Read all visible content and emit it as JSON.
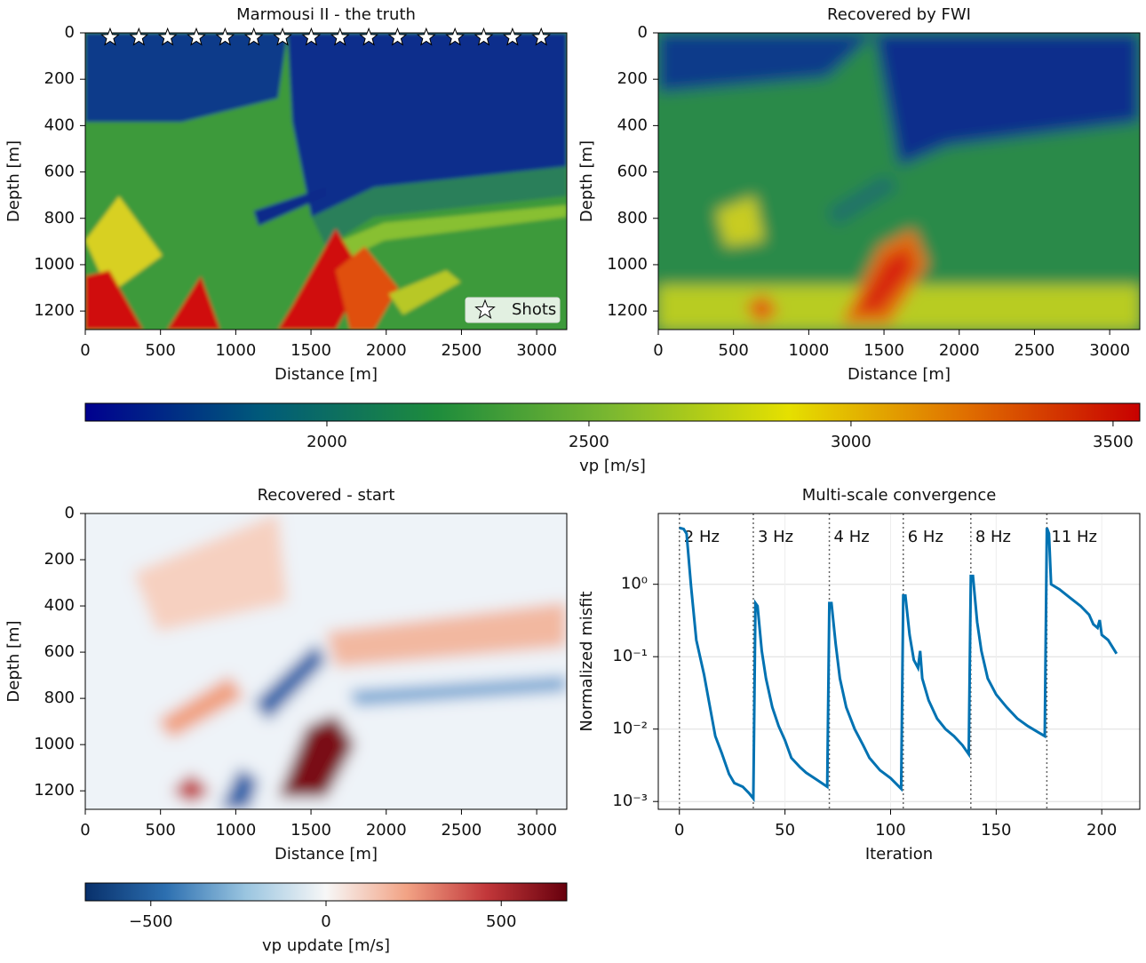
{
  "chart_data": [
    {
      "type": "heatmap",
      "title": "Marmousi II - the truth",
      "xlabel": "Distance [m]",
      "ylabel": "Depth [m]",
      "xlim": [
        0,
        3200
      ],
      "ylim": [
        1280,
        0
      ],
      "xticks": [
        0,
        500,
        1000,
        1500,
        2000,
        2500,
        3000
      ],
      "yticks": [
        0,
        200,
        400,
        600,
        800,
        1000,
        1200
      ],
      "shots": {
        "name": "Shots",
        "x": [
          165,
          356,
          547,
          738,
          929,
          1120,
          1311,
          1502,
          1693,
          1884,
          2075,
          2266,
          2457,
          2648,
          2839,
          3030
        ],
        "y": [
          20,
          20,
          20,
          20,
          20,
          20,
          20,
          20,
          20,
          20,
          20,
          20,
          20,
          20,
          20,
          20
        ]
      }
    },
    {
      "type": "heatmap",
      "title": "Recovered by FWI",
      "xlabel": "Distance [m]",
      "ylabel": "Depth [m]",
      "xlim": [
        0,
        3200
      ],
      "ylim": [
        1280,
        0
      ],
      "xticks": [
        0,
        500,
        1000,
        1500,
        2000,
        2500,
        3000
      ],
      "yticks": [
        0,
        200,
        400,
        600,
        800,
        1000,
        1200
      ]
    },
    {
      "type": "colorbar",
      "label": "vp [m/s]",
      "lim": [
        1539,
        3551
      ],
      "ticks": [
        2000,
        2500,
        3000,
        3500
      ],
      "colors": [
        "#00008f",
        "#005a7a",
        "#1e8c3c",
        "#7cb830",
        "#e5e000",
        "#e07000",
        "#c80000"
      ]
    },
    {
      "type": "heatmap",
      "title": "Recovered - start",
      "xlabel": "Distance [m]",
      "ylabel": "Depth [m]",
      "xlim": [
        0,
        3200
      ],
      "ylim": [
        1280,
        0
      ],
      "xticks": [
        0,
        500,
        1000,
        1500,
        2000,
        2500,
        3000
      ],
      "yticks": [
        0,
        200,
        400,
        600,
        800,
        1000,
        1200
      ]
    },
    {
      "type": "line",
      "title": "Multi-scale convergence",
      "xlabel": "Iteration",
      "ylabel": "Normalized misfit",
      "log_y": true,
      "grid": true,
      "xlim": [
        -10,
        218
      ],
      "ylim": [
        0.00078,
        9.5
      ],
      "xticks": [
        0,
        50,
        100,
        150,
        200
      ],
      "yticks": [
        {
          "value": 0.001,
          "label": "10⁻³"
        },
        {
          "value": 0.01,
          "label": "10⁻²"
        },
        {
          "value": 0.1,
          "label": "10⁻¹"
        },
        {
          "value": 1,
          "label": "10⁰"
        }
      ],
      "x": [
        0,
        2,
        3.4,
        5.5,
        8,
        11.7,
        14,
        17,
        20,
        23.5,
        26,
        30,
        33,
        35,
        36,
        37,
        39,
        41,
        44,
        47,
        50,
        53,
        57,
        60,
        65,
        70,
        71,
        72,
        74,
        76,
        79,
        83,
        87,
        90,
        95,
        100,
        105,
        106,
        107,
        109,
        111,
        113,
        114,
        115,
        118,
        122,
        126,
        130,
        134,
        137,
        138,
        139,
        141,
        143,
        146,
        150,
        155,
        160,
        165,
        170,
        173,
        174,
        175,
        176,
        180,
        185,
        190,
        194,
        196,
        198,
        199,
        200,
        203,
        207
      ],
      "series": [
        {
          "color": "#0072b2",
          "values": [
            6,
            5.8,
            5,
            0.95,
            0.17,
            0.056,
            0.024,
            0.008,
            0.0047,
            0.0024,
            0.0018,
            0.0016,
            0.0013,
            0.0011,
            0.55,
            0.5,
            0.12,
            0.05,
            0.02,
            0.011,
            0.007,
            0.004,
            0.003,
            0.0025,
            0.002,
            0.0016,
            0.55,
            0.55,
            0.15,
            0.05,
            0.02,
            0.01,
            0.006,
            0.004,
            0.0027,
            0.0021,
            0.0015,
            0.7,
            0.7,
            0.2,
            0.09,
            0.07,
            0.12,
            0.05,
            0.025,
            0.014,
            0.01,
            0.008,
            0.006,
            0.0045,
            1.3,
            1.3,
            0.3,
            0.12,
            0.05,
            0.03,
            0.02,
            0.014,
            0.011,
            0.009,
            0.008,
            6,
            5,
            1.0,
            0.85,
            0.65,
            0.5,
            0.38,
            0.28,
            0.25,
            0.32,
            0.2,
            0.17,
            0.11
          ]
        }
      ],
      "annotations": [
        {
          "x": 0,
          "label": "2 Hz"
        },
        {
          "x": 35,
          "label": "3 Hz"
        },
        {
          "x": 71,
          "label": "4 Hz"
        },
        {
          "x": 106,
          "label": "6 Hz"
        },
        {
          "x": 138,
          "label": "8 Hz"
        },
        {
          "x": 174,
          "label": "11 Hz"
        }
      ]
    },
    {
      "type": "colorbar",
      "label": "vp update [m/s]",
      "lim": [
        -687,
        687
      ],
      "ticks": [
        {
          "value": -500,
          "label": "−500"
        },
        0,
        500
      ],
      "colors": [
        "#08306b",
        "#2c6fb0",
        "#9ac5e0",
        "#f7f7f7",
        "#f2a385",
        "#c2373a",
        "#67000d"
      ]
    }
  ]
}
